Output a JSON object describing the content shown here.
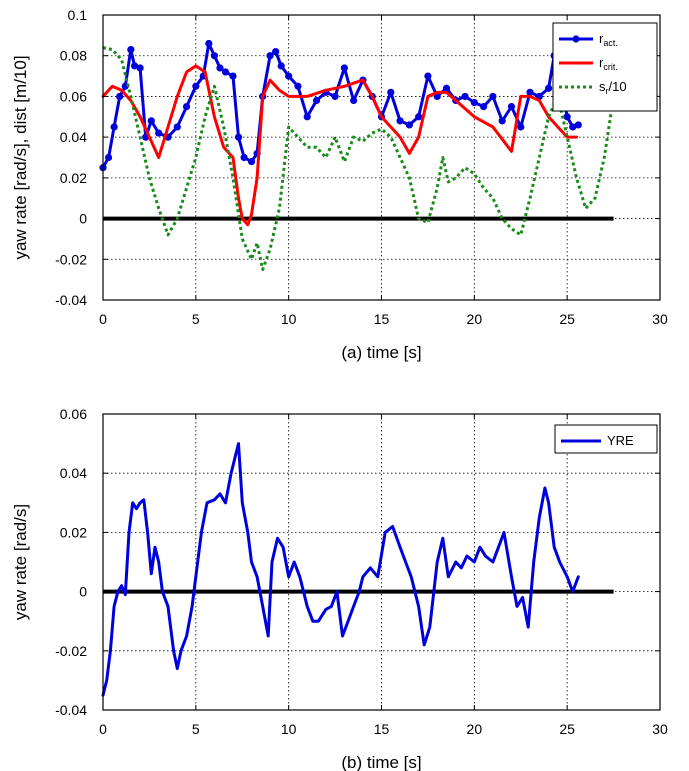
{
  "chart_data": [
    {
      "type": "line",
      "xlabel": "(a) time [s]",
      "ylabel": "yaw rate [rad/s], dist [m/10]",
      "xlim": [
        0,
        30
      ],
      "ylim": [
        -0.04,
        0.1
      ],
      "x_ticks": [
        0,
        5,
        10,
        15,
        20,
        25,
        30
      ],
      "y_ticks": [
        -0.04,
        -0.02,
        0,
        0.02,
        0.04,
        0.06,
        0.08,
        0.1
      ],
      "x_tick_labels": [
        "0",
        "5",
        "10",
        "15",
        "20",
        "25",
        "30"
      ],
      "y_tick_labels": [
        "-0.04",
        "-0.02",
        "0",
        "0.02",
        "0.04",
        "0.06",
        "0.08",
        "0.1"
      ],
      "grid": true,
      "legend_position": "top-right",
      "zero_line": {
        "y": 0,
        "x_range": [
          0,
          27.5
        ],
        "color": "#000000"
      },
      "series": [
        {
          "name": "r_act.",
          "legend_main": "r",
          "legend_sub": "act.",
          "color": "#0000dd",
          "style": "solid-markers",
          "x": [
            0,
            0.3,
            0.6,
            0.9,
            1.2,
            1.5,
            1.7,
            2.0,
            2.3,
            2.6,
            3.0,
            3.5,
            4.0,
            4.5,
            5.0,
            5.4,
            5.7,
            6.0,
            6.3,
            6.6,
            7.0,
            7.3,
            7.6,
            8.0,
            8.3,
            8.6,
            9.0,
            9.3,
            9.6,
            10.0,
            10.5,
            11.0,
            11.5,
            12.0,
            12.5,
            13.0,
            13.5,
            14.0,
            14.5,
            15.0,
            15.5,
            16.0,
            16.5,
            17.0,
            17.5,
            18.0,
            18.5,
            19.0,
            19.5,
            20.0,
            20.5,
            21.0,
            21.5,
            22.0,
            22.5,
            23.0,
            23.5,
            24.0,
            24.3,
            24.6,
            25.0,
            25.3,
            25.6
          ],
          "y": [
            0.025,
            0.03,
            0.045,
            0.06,
            0.065,
            0.083,
            0.075,
            0.074,
            0.04,
            0.048,
            0.042,
            0.04,
            0.045,
            0.055,
            0.065,
            0.07,
            0.086,
            0.08,
            0.074,
            0.072,
            0.07,
            0.04,
            0.03,
            0.028,
            0.032,
            0.06,
            0.08,
            0.082,
            0.075,
            0.07,
            0.065,
            0.05,
            0.058,
            0.062,
            0.06,
            0.074,
            0.058,
            0.068,
            0.06,
            0.05,
            0.062,
            0.048,
            0.046,
            0.05,
            0.07,
            0.06,
            0.064,
            0.058,
            0.06,
            0.057,
            0.055,
            0.06,
            0.048,
            0.055,
            0.045,
            0.062,
            0.06,
            0.064,
            0.08,
            0.07,
            0.05,
            0.045,
            0.046
          ]
        },
        {
          "name": "r_crit.",
          "legend_main": "r",
          "legend_sub": "crit.",
          "color": "#ff0000",
          "style": "solid",
          "x": [
            0,
            0.5,
            1.0,
            1.5,
            2.0,
            2.5,
            3.0,
            3.5,
            4.0,
            4.5,
            5.0,
            5.5,
            6.0,
            6.5,
            7.0,
            7.3,
            7.5,
            7.8,
            8.0,
            8.3,
            8.6,
            9.0,
            9.5,
            10.0,
            11.0,
            12.0,
            13.0,
            14.0,
            14.5,
            15.0,
            15.5,
            16.0,
            16.5,
            17.0,
            17.5,
            18.0,
            18.5,
            19.0,
            20.0,
            21.0,
            22.0,
            22.5,
            23.0,
            23.5,
            24.0,
            24.5,
            25.0,
            25.5
          ],
          "y": [
            0.06,
            0.065,
            0.063,
            0.058,
            0.05,
            0.04,
            0.03,
            0.045,
            0.06,
            0.072,
            0.075,
            0.072,
            0.05,
            0.035,
            0.03,
            0.01,
            0.0,
            -0.003,
            0.002,
            0.02,
            0.06,
            0.068,
            0.063,
            0.06,
            0.06,
            0.063,
            0.065,
            0.068,
            0.06,
            0.05,
            0.045,
            0.04,
            0.032,
            0.04,
            0.06,
            0.062,
            0.062,
            0.058,
            0.05,
            0.045,
            0.033,
            0.06,
            0.06,
            0.058,
            0.05,
            0.045,
            0.04,
            0.04
          ]
        },
        {
          "name": "s_r/10",
          "legend_main": "s",
          "legend_sub": "r",
          "legend_suffix": "/10",
          "color": "#1a8c1a",
          "style": "dotted",
          "x": [
            0,
            0.5,
            1.0,
            1.5,
            2.0,
            2.5,
            3.0,
            3.5,
            4.0,
            4.5,
            5.0,
            5.5,
            6.0,
            6.5,
            7.0,
            7.5,
            8.0,
            8.3,
            8.6,
            9.0,
            9.5,
            10.0,
            10.5,
            11.0,
            11.5,
            12.0,
            12.5,
            13.0,
            13.5,
            14.0,
            14.5,
            15.0,
            15.5,
            16.0,
            16.5,
            17.0,
            17.5,
            18.0,
            18.3,
            18.6,
            19.0,
            19.5,
            20.0,
            20.5,
            21.0,
            21.5,
            22.0,
            22.5,
            23.0,
            23.5,
            24.0,
            24.5,
            25.0,
            25.5,
            26.0,
            26.5,
            27.0,
            27.5
          ],
          "y": [
            0.084,
            0.083,
            0.078,
            0.06,
            0.04,
            0.02,
            0.005,
            -0.008,
            0.0,
            0.015,
            0.03,
            0.05,
            0.065,
            0.045,
            0.02,
            -0.01,
            -0.02,
            -0.012,
            -0.025,
            -0.015,
            0.005,
            0.045,
            0.04,
            0.035,
            0.035,
            0.03,
            0.04,
            0.028,
            0.04,
            0.038,
            0.042,
            0.044,
            0.04,
            0.03,
            0.02,
            0.0,
            -0.002,
            0.015,
            0.03,
            0.018,
            0.02,
            0.025,
            0.022,
            0.015,
            0.01,
            0.0,
            -0.005,
            -0.008,
            0.01,
            0.03,
            0.05,
            0.06,
            0.04,
            0.02,
            0.005,
            0.01,
            0.03,
            0.06
          ]
        }
      ]
    },
    {
      "type": "line",
      "xlabel": "(b) time [s]",
      "ylabel": "yaw rate [rad/s]",
      "xlim": [
        0,
        30
      ],
      "ylim": [
        -0.04,
        0.06
      ],
      "x_ticks": [
        0,
        5,
        10,
        15,
        20,
        25,
        30
      ],
      "y_ticks": [
        -0.04,
        -0.02,
        0,
        0.02,
        0.04,
        0.06
      ],
      "x_tick_labels": [
        "0",
        "5",
        "10",
        "15",
        "20",
        "25",
        "30"
      ],
      "y_tick_labels": [
        "-0.04",
        "-0.02",
        "0",
        "0.02",
        "0.04",
        "0.06"
      ],
      "grid": true,
      "legend_position": "top-right",
      "zero_line": {
        "y": 0,
        "x_range": [
          0,
          27.5
        ],
        "color": "#000000"
      },
      "series": [
        {
          "name": "YRE",
          "legend_main": "YRE",
          "color": "#0000dd",
          "style": "solid",
          "x": [
            0,
            0.2,
            0.4,
            0.6,
            0.8,
            1.0,
            1.2,
            1.4,
            1.6,
            1.8,
            2.0,
            2.2,
            2.4,
            2.6,
            2.8,
            3.0,
            3.2,
            3.5,
            3.8,
            4.0,
            4.2,
            4.5,
            4.8,
            5.0,
            5.3,
            5.6,
            6.0,
            6.3,
            6.6,
            6.9,
            7.1,
            7.3,
            7.5,
            7.8,
            8.0,
            8.3,
            8.6,
            8.9,
            9.1,
            9.4,
            9.7,
            10.0,
            10.3,
            10.6,
            11.0,
            11.3,
            11.6,
            12.0,
            12.3,
            12.6,
            12.9,
            13.2,
            13.5,
            13.8,
            14.0,
            14.4,
            14.8,
            15.2,
            15.6,
            16.0,
            16.3,
            16.6,
            17.0,
            17.3,
            17.6,
            18.0,
            18.3,
            18.6,
            19.0,
            19.3,
            19.6,
            20.0,
            20.3,
            20.6,
            21.0,
            21.3,
            21.6,
            22.0,
            22.3,
            22.6,
            22.9,
            23.2,
            23.5,
            23.8,
            24.0,
            24.3,
            24.6,
            25.0,
            25.3,
            25.6
          ],
          "y": [
            -0.035,
            -0.03,
            -0.02,
            -0.005,
            0.0,
            0.002,
            -0.001,
            0.02,
            0.03,
            0.028,
            0.03,
            0.031,
            0.02,
            0.006,
            0.015,
            0.01,
            0.0,
            -0.005,
            -0.02,
            -0.026,
            -0.02,
            -0.015,
            -0.005,
            0.005,
            0.02,
            0.03,
            0.031,
            0.033,
            0.03,
            0.04,
            0.045,
            0.05,
            0.03,
            0.02,
            0.01,
            0.005,
            -0.005,
            -0.015,
            0.01,
            0.018,
            0.015,
            0.005,
            0.01,
            0.005,
            -0.005,
            -0.01,
            -0.01,
            -0.006,
            -0.005,
            0.0,
            -0.015,
            -0.01,
            -0.005,
            0.0,
            0.005,
            0.008,
            0.005,
            0.02,
            0.022,
            0.015,
            0.01,
            0.005,
            -0.005,
            -0.018,
            -0.012,
            0.01,
            0.018,
            0.005,
            0.01,
            0.008,
            0.012,
            0.01,
            0.015,
            0.012,
            0.01,
            0.015,
            0.02,
            0.005,
            -0.005,
            -0.002,
            -0.012,
            0.01,
            0.025,
            0.035,
            0.03,
            0.015,
            0.01,
            0.005,
            0.0,
            0.005
          ]
        }
      ]
    }
  ]
}
